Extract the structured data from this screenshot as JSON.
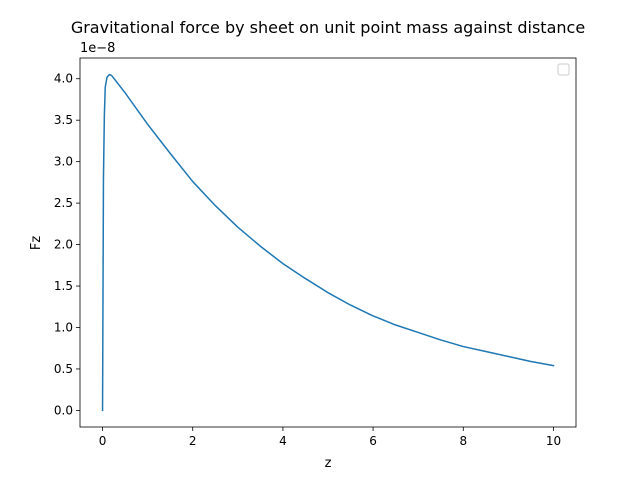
{
  "chart_data": {
    "type": "line",
    "title": "Gravitational force by sheet on unit point mass against distance",
    "xlabel": "z",
    "ylabel": "Fz",
    "y_scale_label": "1e−8",
    "xlim": [
      -0.5,
      10.5
    ],
    "ylim": [
      -0.2,
      4.25
    ],
    "y_display_multiplier": 1e-08,
    "x_ticks": [
      0,
      2,
      4,
      6,
      8,
      10
    ],
    "x_tick_labels": [
      "0",
      "2",
      "4",
      "6",
      "8",
      "10"
    ],
    "y_ticks": [
      0.0,
      0.5,
      1.0,
      1.5,
      2.0,
      2.5,
      3.0,
      3.5,
      4.0
    ],
    "y_tick_labels": [
      "0.0",
      "0.5",
      "1.0",
      "1.5",
      "2.0",
      "2.5",
      "3.0",
      "3.5",
      "4.0"
    ],
    "grid": false,
    "legend": {
      "position": "top-right",
      "entries": []
    },
    "series": [
      {
        "color": "#1f77b4",
        "x": [
          0.0,
          0.02,
          0.04,
          0.06,
          0.1,
          0.15,
          0.2,
          0.3,
          0.5,
          1.0,
          1.5,
          2.0,
          2.5,
          3.0,
          3.5,
          4.0,
          4.5,
          5.0,
          5.5,
          6.0,
          6.5,
          7.0,
          7.5,
          8.0,
          8.5,
          9.0,
          9.5,
          10.0
        ],
        "y": [
          0.0,
          2.8,
          3.55,
          3.9,
          4.02,
          4.05,
          4.04,
          3.97,
          3.83,
          3.45,
          3.1,
          2.76,
          2.47,
          2.21,
          1.98,
          1.77,
          1.59,
          1.42,
          1.27,
          1.14,
          1.03,
          0.94,
          0.85,
          0.77,
          0.71,
          0.65,
          0.59,
          0.54
        ]
      }
    ]
  }
}
